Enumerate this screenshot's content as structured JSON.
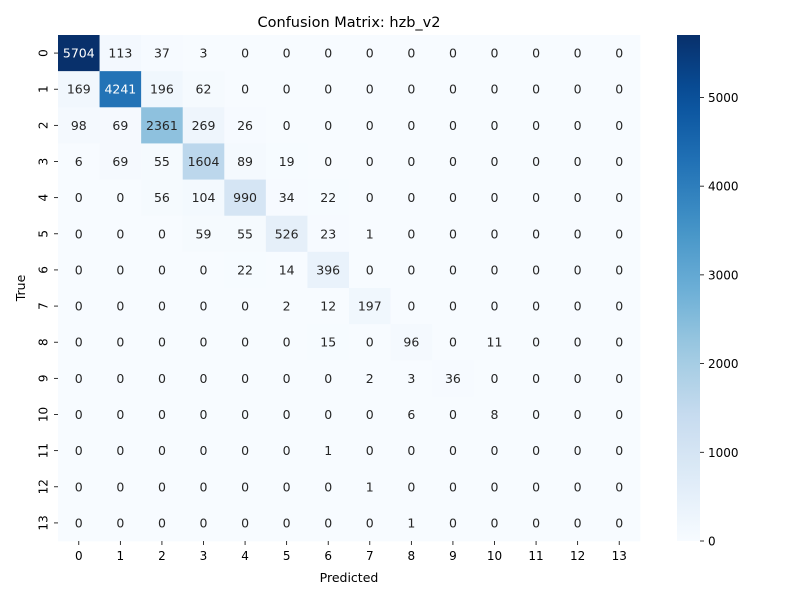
{
  "chart_data": {
    "type": "heatmap",
    "title": "Confusion Matrix: hzb_v2",
    "xlabel": "Predicted",
    "ylabel": "True",
    "x_categories": [
      "0",
      "1",
      "2",
      "3",
      "4",
      "5",
      "6",
      "7",
      "8",
      "9",
      "10",
      "11",
      "12",
      "13"
    ],
    "y_categories": [
      "0",
      "1",
      "2",
      "3",
      "4",
      "5",
      "6",
      "7",
      "8",
      "9",
      "10",
      "11",
      "12",
      "13"
    ],
    "values": [
      [
        5704,
        113,
        37,
        3,
        0,
        0,
        0,
        0,
        0,
        0,
        0,
        0,
        0,
        0
      ],
      [
        169,
        4241,
        196,
        62,
        0,
        0,
        0,
        0,
        0,
        0,
        0,
        0,
        0,
        0
      ],
      [
        98,
        69,
        2361,
        269,
        26,
        0,
        0,
        0,
        0,
        0,
        0,
        0,
        0,
        0
      ],
      [
        6,
        69,
        55,
        1604,
        89,
        19,
        0,
        0,
        0,
        0,
        0,
        0,
        0,
        0
      ],
      [
        0,
        0,
        56,
        104,
        990,
        34,
        22,
        0,
        0,
        0,
        0,
        0,
        0,
        0
      ],
      [
        0,
        0,
        0,
        59,
        55,
        526,
        23,
        1,
        0,
        0,
        0,
        0,
        0,
        0
      ],
      [
        0,
        0,
        0,
        0,
        22,
        14,
        396,
        0,
        0,
        0,
        0,
        0,
        0,
        0
      ],
      [
        0,
        0,
        0,
        0,
        0,
        2,
        12,
        197,
        0,
        0,
        0,
        0,
        0,
        0
      ],
      [
        0,
        0,
        0,
        0,
        0,
        0,
        15,
        0,
        96,
        0,
        11,
        0,
        0,
        0
      ],
      [
        0,
        0,
        0,
        0,
        0,
        0,
        0,
        2,
        3,
        36,
        0,
        0,
        0,
        0
      ],
      [
        0,
        0,
        0,
        0,
        0,
        0,
        0,
        0,
        6,
        0,
        8,
        0,
        0,
        0
      ],
      [
        0,
        0,
        0,
        0,
        0,
        0,
        1,
        0,
        0,
        0,
        0,
        0,
        0,
        0
      ],
      [
        0,
        0,
        0,
        0,
        0,
        0,
        0,
        1,
        0,
        0,
        0,
        0,
        0,
        0
      ],
      [
        0,
        0,
        0,
        0,
        0,
        0,
        0,
        0,
        1,
        0,
        0,
        0,
        0,
        0
      ]
    ],
    "colorbar": {
      "range": [
        0,
        5704
      ],
      "ticks": [
        0,
        1000,
        2000,
        3000,
        4000,
        5000
      ],
      "colormap": "Blues",
      "low_color": "#f7fbff",
      "high_color": "#08306b"
    }
  }
}
